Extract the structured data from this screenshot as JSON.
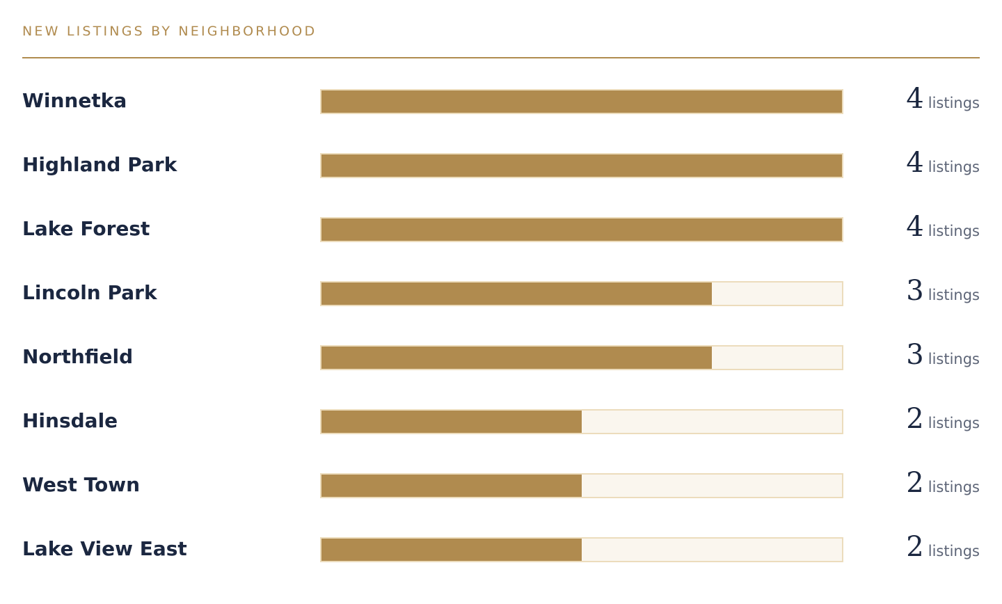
{
  "colors": {
    "accent": "#b08b4f",
    "track": "#faf6ee",
    "track_border": "#ecdcbc",
    "label": "#1b2740"
  },
  "chart_data": {
    "type": "bar",
    "orientation": "horizontal",
    "title": "NEW LISTINGS BY NEIGHBORHOOD",
    "categories": [
      "Winnetka",
      "Highland Park",
      "Lake Forest",
      "Lincoln Park",
      "Northfield",
      "Hinsdale",
      "West Town",
      "Lake View East"
    ],
    "values": [
      4,
      4,
      4,
      3,
      3,
      2,
      2,
      2
    ],
    "unit": "listings",
    "xlim": [
      0,
      4
    ],
    "grid": false,
    "legend": "none"
  }
}
